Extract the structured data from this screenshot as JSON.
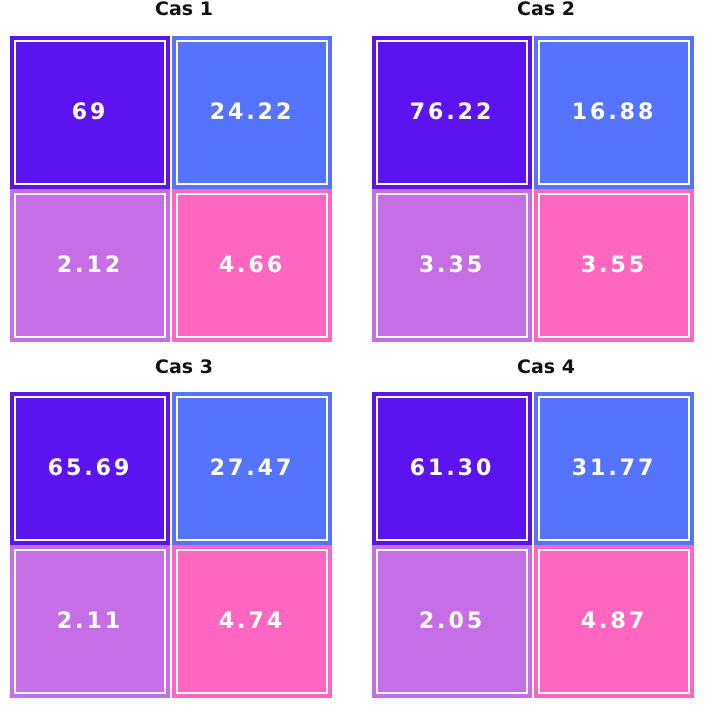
{
  "colors": {
    "top_left": "#5b14f0",
    "top_right": "#5474ff",
    "bottom_left": "#c66ee6",
    "bottom_right": "#ff66c0"
  },
  "chart_data": [
    {
      "type": "heatmap",
      "title": "Cas 1",
      "values": [
        [
          "69",
          "24.22"
        ],
        [
          "2.12",
          "4.66"
        ]
      ]
    },
    {
      "type": "heatmap",
      "title": "Cas 2",
      "values": [
        [
          "76.22",
          "16.88"
        ],
        [
          "3.35",
          "3.55"
        ]
      ]
    },
    {
      "type": "heatmap",
      "title": "Cas 3",
      "values": [
        [
          "65.69",
          "27.47"
        ],
        [
          "2.11",
          "4.74"
        ]
      ]
    },
    {
      "type": "heatmap",
      "title": "Cas 4",
      "values": [
        [
          "61.30",
          "31.77"
        ],
        [
          "2.05",
          "4.87"
        ]
      ]
    }
  ]
}
